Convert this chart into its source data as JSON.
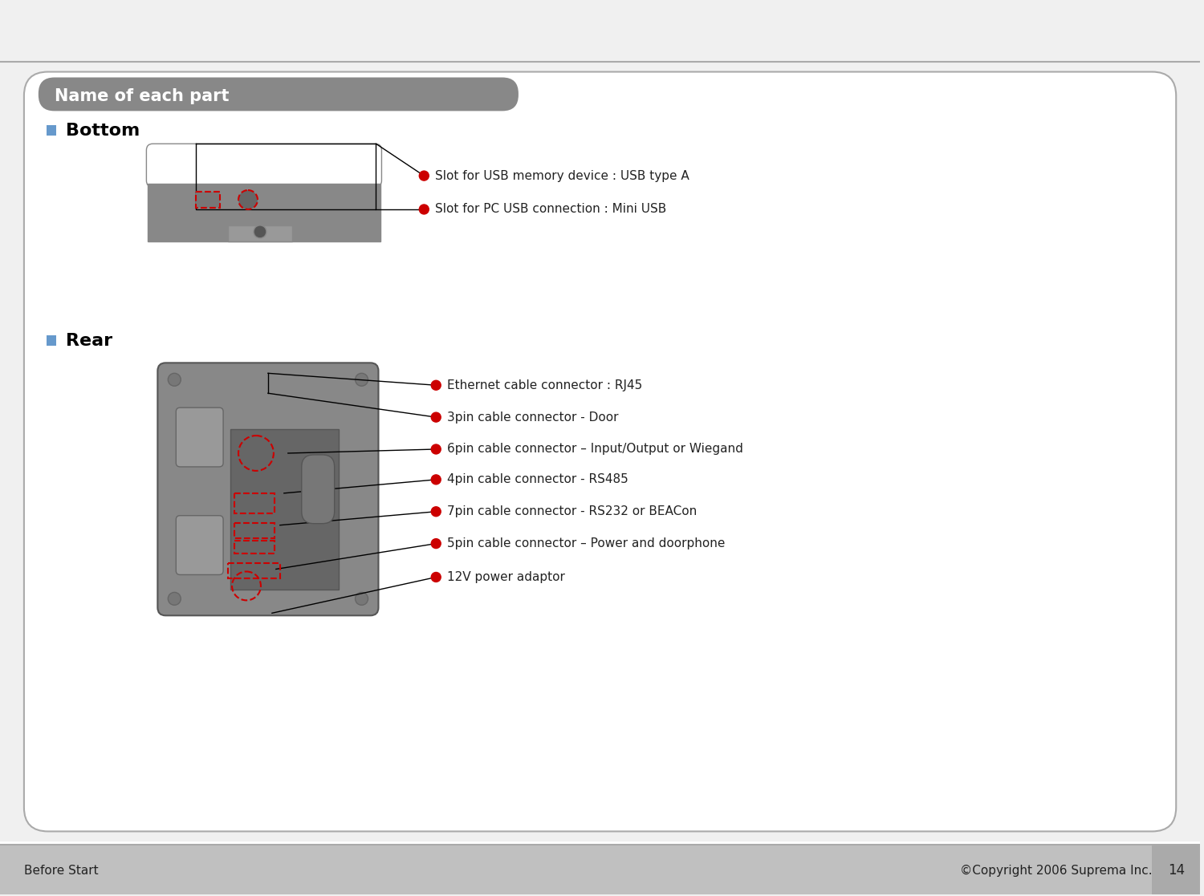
{
  "bg_color": "#f0f0f0",
  "main_bg": "#ffffff",
  "header_bg": "#888888",
  "header_text": "Name of each part",
  "header_text_color": "#ffffff",
  "footer_bg": "#c0c0c0",
  "footer_left": "Before Start",
  "footer_right": "©Copyright 2006 Suprema Inc.",
  "page_number": "14",
  "section1_title": "Bottom",
  "section2_title": "Rear",
  "bullet_color": "#6699cc",
  "red_dot_color": "#cc0000",
  "bottom_labels": [
    "Slot for USB memory device : USB type A",
    "Slot for PC USB connection : Mini USB"
  ],
  "rear_labels": [
    "Ethernet cable connector : RJ45",
    "3pin cable connector - Door",
    "6pin cable connector – Input/Output or Wiegand",
    "4pin cable connector - RS485",
    "7pin cable connector - RS232 or BEACon",
    "5pin cable connector – Power and doorphone",
    "12V power adaptor"
  ]
}
